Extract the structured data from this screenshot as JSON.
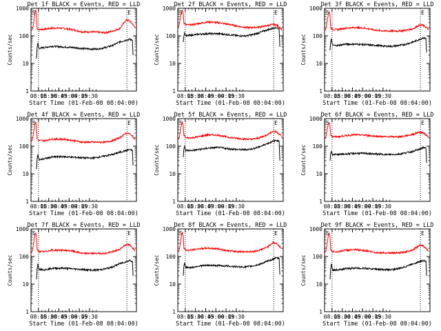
{
  "chart_data": [
    {
      "type": "line",
      "title": "Det 1f BLACK = Events, RED = LLD",
      "xlabel": "Start Time (01-Feb-08 08:04:00)",
      "ylabel": "Counts/sec",
      "xticks": [
        "08:15",
        "08:30",
        "08:45",
        "09:00",
        "09:15",
        "09:30"
      ],
      "yticks": [
        "1",
        "10",
        "100",
        "1000"
      ],
      "ylim": [
        1,
        1000
      ],
      "yscale": "log",
      "markers": [
        "S",
        "E"
      ],
      "series": [
        {
          "color": "#ff0000",
          "x": [
            0,
            2,
            4,
            6,
            7,
            8,
            9,
            12,
            20,
            30,
            45,
            60,
            75,
            90,
            100,
            110,
            120,
            130,
            140,
            145,
            150,
            153
          ],
          "y": [
            150,
            170,
            300,
            750,
            850,
            600,
            180,
            170,
            175,
            190,
            190,
            170,
            140,
            140,
            135,
            130,
            150,
            180,
            380,
            350,
            260,
            200
          ]
        },
        {
          "color": "#000000",
          "x": [
            8,
            9,
            10,
            11,
            12,
            20,
            30,
            45,
            60,
            75,
            90,
            100,
            110,
            120,
            130,
            140,
            145,
            149,
            150
          ],
          "y": [
            15,
            40,
            55,
            40,
            35,
            38,
            42,
            40,
            38,
            35,
            33,
            34,
            38,
            45,
            60,
            70,
            75,
            70,
            20
          ]
        }
      ]
    },
    {
      "type": "line",
      "title": "Det 2f BLACK = Events, RED = LLD",
      "xlabel": "Start Time (01-Feb-08 08:04:00)",
      "ylabel": "Counts/sec",
      "xticks": [
        "08:15",
        "08:30",
        "08:45",
        "09:00",
        "09:15",
        "09:30"
      ],
      "yticks": [
        "1",
        "10",
        "100",
        "1000"
      ],
      "ylim": [
        1,
        1000
      ],
      "yscale": "log",
      "markers": [
        "S",
        "E"
      ],
      "series": [
        {
          "color": "#ff0000",
          "x": [
            0,
            2,
            4,
            6,
            7,
            8,
            9,
            12,
            20,
            30,
            45,
            60,
            75,
            90,
            100,
            110,
            120,
            130,
            140,
            145,
            150,
            153
          ],
          "y": [
            200,
            250,
            500,
            800,
            850,
            650,
            300,
            250,
            250,
            280,
            320,
            300,
            260,
            220,
            200,
            200,
            210,
            230,
            260,
            250,
            200,
            170
          ]
        },
        {
          "color": "#000000",
          "x": [
            8,
            9,
            10,
            11,
            12,
            20,
            30,
            45,
            60,
            75,
            90,
            100,
            110,
            120,
            130,
            140,
            145,
            149,
            150
          ],
          "y": [
            60,
            100,
            130,
            110,
            100,
            105,
            115,
            120,
            120,
            110,
            100,
            100,
            110,
            130,
            160,
            190,
            200,
            180,
            40
          ]
        }
      ]
    },
    {
      "type": "line",
      "title": "Det 3f BLACK = Events, RED = LLD",
      "xlabel": "Start Time (01-Feb-08 08:04:00)",
      "ylabel": "Counts/sec",
      "xticks": [
        "08:15",
        "08:30",
        "08:45",
        "09:00",
        "09:15",
        "09:30"
      ],
      "yticks": [
        "1",
        "10",
        "100",
        "1000"
      ],
      "ylim": [
        1,
        1000
      ],
      "yscale": "log",
      "markers": [
        "S",
        "E"
      ],
      "series": [
        {
          "color": "#ff0000",
          "x": [
            0,
            2,
            4,
            6,
            7,
            8,
            9,
            12,
            20,
            30,
            45,
            60,
            75,
            90,
            100,
            110,
            120,
            130,
            140,
            145,
            150,
            153
          ],
          "y": [
            150,
            180,
            350,
            700,
            750,
            550,
            200,
            170,
            170,
            190,
            200,
            190,
            160,
            150,
            150,
            150,
            160,
            180,
            250,
            240,
            200,
            170
          ]
        },
        {
          "color": "#000000",
          "x": [
            8,
            9,
            10,
            11,
            12,
            20,
            30,
            45,
            60,
            75,
            90,
            100,
            110,
            120,
            130,
            140,
            145,
            149,
            150
          ],
          "y": [
            30,
            60,
            80,
            55,
            45,
            45,
            50,
            50,
            48,
            45,
            42,
            42,
            45,
            50,
            60,
            75,
            85,
            80,
            25
          ]
        }
      ]
    },
    {
      "type": "line",
      "title": "Det 4f BLACK = Events, RED = LLD",
      "xlabel": "Start Time (01-Feb-08 08:04:00)",
      "ylabel": "Counts/sec",
      "xticks": [
        "08:15",
        "08:30",
        "08:45",
        "09:00",
        "09:15",
        "09:30"
      ],
      "yticks": [
        "1",
        "10",
        "100",
        "1000"
      ],
      "ylim": [
        1,
        1000
      ],
      "yscale": "log",
      "markers": [
        "S",
        "E"
      ],
      "series": [
        {
          "color": "#ff0000",
          "x": [
            0,
            2,
            4,
            6,
            7,
            8,
            9,
            12,
            20,
            30,
            45,
            60,
            75,
            90,
            100,
            110,
            120,
            130,
            140,
            145,
            150,
            153
          ],
          "y": [
            140,
            170,
            330,
            700,
            750,
            550,
            190,
            160,
            160,
            180,
            180,
            165,
            140,
            140,
            140,
            140,
            160,
            200,
            300,
            280,
            220,
            180
          ]
        },
        {
          "color": "#000000",
          "x": [
            8,
            9,
            10,
            11,
            12,
            20,
            30,
            45,
            60,
            75,
            90,
            100,
            110,
            120,
            130,
            140,
            145,
            149,
            150
          ],
          "y": [
            15,
            35,
            50,
            38,
            32,
            35,
            40,
            42,
            40,
            38,
            37,
            40,
            45,
            50,
            60,
            70,
            75,
            70,
            20
          ]
        }
      ]
    },
    {
      "type": "line",
      "title": "Det 5f BLACK = Events, RED = LLD",
      "xlabel": "Start Time (01-Feb-08 08:04:00)",
      "ylabel": "Counts/sec",
      "xticks": [
        "08:15",
        "08:30",
        "08:45",
        "09:00",
        "09:15",
        "09:30"
      ],
      "yticks": [
        "1",
        "10",
        "100",
        "1000"
      ],
      "ylim": [
        1,
        1000
      ],
      "yscale": "log",
      "markers": [
        "S",
        "E"
      ],
      "series": [
        {
          "color": "#ff0000",
          "x": [
            0,
            2,
            4,
            6,
            7,
            8,
            9,
            12,
            20,
            30,
            45,
            60,
            75,
            90,
            100,
            110,
            120,
            130,
            140,
            145,
            150,
            153
          ],
          "y": [
            170,
            200,
            400,
            700,
            750,
            550,
            250,
            200,
            200,
            220,
            260,
            250,
            210,
            190,
            180,
            180,
            200,
            250,
            350,
            330,
            270,
            220
          ]
        },
        {
          "color": "#000000",
          "x": [
            8,
            9,
            10,
            11,
            12,
            20,
            30,
            45,
            60,
            75,
            90,
            100,
            110,
            120,
            130,
            140,
            145,
            149,
            150
          ],
          "y": [
            40,
            80,
            100,
            80,
            70,
            70,
            75,
            85,
            90,
            80,
            75,
            75,
            80,
            95,
            120,
            150,
            165,
            150,
            30
          ]
        }
      ]
    },
    {
      "type": "line",
      "title": "Det 6f BLACK = Events, RED = LLD",
      "xlabel": "Start Time (01-Feb-08 08:04:00)",
      "ylabel": "Counts/sec",
      "xticks": [
        "08:15",
        "08:30",
        "08:45",
        "09:00",
        "09:15",
        "09:30"
      ],
      "yticks": [
        "1",
        "10",
        "100",
        "1000"
      ],
      "ylim": [
        1,
        1000
      ],
      "yscale": "log",
      "markers": [
        "S",
        "E"
      ],
      "series": [
        {
          "color": "#ff0000",
          "x": [
            0,
            2,
            4,
            6,
            7,
            8,
            9,
            12,
            20,
            30,
            45,
            60,
            75,
            90,
            100,
            110,
            120,
            130,
            140,
            145,
            150,
            153
          ],
          "y": [
            180,
            220,
            420,
            700,
            720,
            520,
            260,
            220,
            220,
            240,
            260,
            250,
            230,
            220,
            220,
            220,
            240,
            270,
            330,
            300,
            250,
            220
          ]
        },
        {
          "color": "#000000",
          "x": [
            8,
            9,
            10,
            11,
            12,
            20,
            30,
            45,
            60,
            75,
            90,
            100,
            110,
            120,
            130,
            140,
            145,
            149,
            150
          ],
          "y": [
            30,
            55,
            65,
            55,
            50,
            50,
            52,
            55,
            55,
            52,
            50,
            50,
            52,
            58,
            65,
            78,
            90,
            85,
            25
          ]
        }
      ]
    },
    {
      "type": "line",
      "title": "Det 7f BLACK = Events, RED = LLD",
      "xlabel": "Start Time (01-Feb-08 08:04:00)",
      "ylabel": "Counts/sec",
      "xticks": [
        "08:15",
        "08:30",
        "08:45",
        "09:00",
        "09:15",
        "09:30"
      ],
      "yticks": [
        "1",
        "10",
        "100",
        "1000"
      ],
      "ylim": [
        1,
        1000
      ],
      "yscale": "log",
      "markers": [
        "S",
        "E"
      ],
      "series": [
        {
          "color": "#ff0000",
          "x": [
            0,
            2,
            4,
            6,
            7,
            8,
            9,
            12,
            20,
            30,
            45,
            60,
            75,
            90,
            100,
            110,
            120,
            130,
            140,
            145,
            150,
            153
          ],
          "y": [
            130,
            160,
            320,
            650,
            700,
            500,
            180,
            150,
            150,
            170,
            170,
            160,
            130,
            130,
            130,
            130,
            150,
            180,
            280,
            260,
            200,
            170
          ]
        },
        {
          "color": "#000000",
          "x": [
            8,
            9,
            10,
            11,
            12,
            20,
            30,
            45,
            60,
            75,
            90,
            100,
            110,
            120,
            130,
            140,
            145,
            149,
            150
          ],
          "y": [
            15,
            35,
            55,
            40,
            35,
            33,
            37,
            38,
            36,
            34,
            32,
            33,
            36,
            42,
            55,
            65,
            72,
            68,
            20
          ]
        }
      ]
    },
    {
      "type": "line",
      "title": "Det 8f BLACK = Events, RED = LLD",
      "xlabel": "Start Time (01-Feb-08 08:04:00)",
      "ylabel": "Counts/sec",
      "xticks": [
        "08:15",
        "08:30",
        "08:45",
        "09:00",
        "09:15",
        "09:30"
      ],
      "yticks": [
        "1",
        "10",
        "100",
        "1000"
      ],
      "ylim": [
        1,
        1000
      ],
      "yscale": "log",
      "markers": [
        "S",
        "E"
      ],
      "series": [
        {
          "color": "#ff0000",
          "x": [
            0,
            2,
            4,
            6,
            7,
            8,
            9,
            12,
            20,
            30,
            45,
            60,
            75,
            90,
            100,
            110,
            120,
            130,
            140,
            145,
            150,
            153
          ],
          "y": [
            140,
            170,
            340,
            700,
            750,
            540,
            200,
            170,
            170,
            190,
            200,
            190,
            160,
            150,
            150,
            150,
            170,
            210,
            320,
            300,
            230,
            190
          ]
        },
        {
          "color": "#000000",
          "x": [
            8,
            9,
            10,
            11,
            12,
            20,
            30,
            45,
            60,
            75,
            90,
            100,
            110,
            120,
            130,
            140,
            145,
            149,
            150
          ],
          "y": [
            20,
            45,
            60,
            45,
            40,
            40,
            45,
            48,
            47,
            45,
            42,
            42,
            45,
            52,
            65,
            80,
            90,
            85,
            22
          ]
        }
      ]
    },
    {
      "type": "line",
      "title": "Det 9f BLACK = Events, RED = LLD",
      "xlabel": "Start Time (01-Feb-08 08:04:00)",
      "ylabel": "Counts/sec",
      "xticks": [
        "08:15",
        "08:30",
        "08:45",
        "09:00",
        "09:15",
        "09:30"
      ],
      "yticks": [
        "1",
        "10",
        "100",
        "1000"
      ],
      "ylim": [
        1,
        1000
      ],
      "yscale": "log",
      "markers": [
        "S",
        "E"
      ],
      "series": [
        {
          "color": "#ff0000",
          "x": [
            0,
            2,
            4,
            6,
            7,
            8,
            9,
            12,
            20,
            30,
            45,
            60,
            75,
            90,
            100,
            110,
            120,
            130,
            140,
            145,
            150,
            153
          ],
          "y": [
            130,
            160,
            320,
            650,
            700,
            500,
            180,
            150,
            150,
            170,
            175,
            165,
            140,
            135,
            135,
            135,
            150,
            175,
            260,
            240,
            190,
            160
          ]
        },
        {
          "color": "#000000",
          "x": [
            8,
            9,
            10,
            11,
            12,
            20,
            30,
            45,
            60,
            75,
            90,
            100,
            110,
            120,
            130,
            140,
            145,
            149,
            150
          ],
          "y": [
            15,
            35,
            55,
            40,
            32,
            33,
            36,
            38,
            37,
            35,
            33,
            34,
            37,
            44,
            55,
            65,
            72,
            68,
            20
          ]
        }
      ]
    }
  ]
}
